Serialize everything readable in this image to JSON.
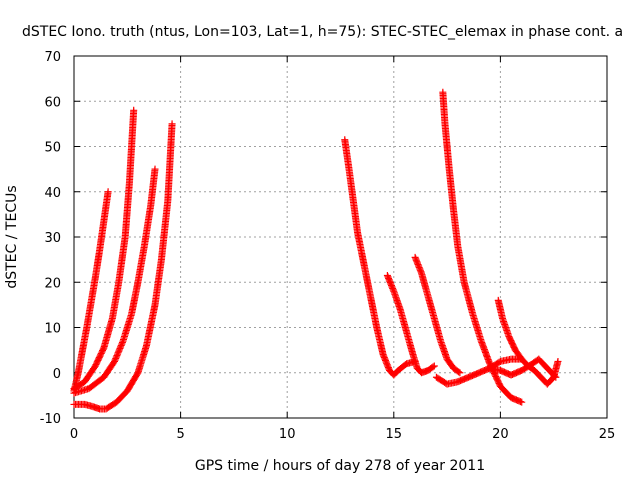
{
  "chart_data": {
    "type": "scatter",
    "title": "dSTEC Iono. truth (ntus, Lon=103, Lat=1, h=75): STEC-STEC_elemax in phase cont. a",
    "xlabel": "GPS time / hours of day 278 of year 2011",
    "ylabel": "dSTEC  / TECUs",
    "xlim": [
      0,
      25
    ],
    "ylim": [
      -10,
      70
    ],
    "xticks": [
      0,
      5,
      10,
      15,
      20,
      25
    ],
    "yticks": [
      -10,
      0,
      10,
      20,
      30,
      40,
      50,
      60,
      70
    ],
    "grid": true,
    "marker": "+",
    "color": "#ff0000",
    "series": [
      {
        "x": [
          0.0,
          0.2,
          0.4,
          0.6,
          0.8,
          1.0,
          1.2,
          1.4,
          1.6
        ],
        "y": [
          -4.0,
          0.0,
          5.0,
          10.0,
          15.5,
          21.0,
          27.0,
          33.5,
          40.0
        ]
      },
      {
        "x": [
          0.0,
          0.5,
          1.0,
          1.4,
          1.8,
          2.1,
          2.4,
          2.6,
          2.8
        ],
        "y": [
          -3.5,
          -2.0,
          1.5,
          5.5,
          12.0,
          20.0,
          30.0,
          42.0,
          58.0
        ]
      },
      {
        "x": [
          0.0,
          0.7,
          1.4,
          1.9,
          2.3,
          2.7,
          3.0,
          3.3,
          3.6,
          3.8
        ],
        "y": [
          -4.5,
          -3.5,
          -1.0,
          2.5,
          7.0,
          13.0,
          20.0,
          28.0,
          37.0,
          45.0
        ]
      },
      {
        "x": [
          0.0,
          0.5,
          0.9,
          1.2,
          1.5,
          2.0,
          2.5,
          3.0,
          3.4,
          3.8,
          4.1,
          4.4,
          4.6
        ],
        "y": [
          -7.0,
          -7.0,
          -7.5,
          -8.0,
          -8.0,
          -6.5,
          -4.0,
          0.0,
          6.0,
          15.0,
          25.0,
          38.0,
          55.0
        ]
      },
      {
        "x": [
          12.7,
          12.9,
          13.1,
          13.3,
          13.6,
          13.9,
          14.2,
          14.5,
          14.8,
          15.0,
          15.2,
          15.6,
          16.0
        ],
        "y": [
          51.5,
          45.0,
          38.0,
          31.0,
          24.0,
          17.0,
          10.0,
          4.0,
          0.5,
          -0.5,
          0.5,
          2.0,
          2.5
        ]
      },
      {
        "x": [
          14.7,
          15.0,
          15.3,
          15.6,
          15.9,
          16.1,
          16.3,
          16.6,
          16.9
        ],
        "y": [
          21.5,
          18.0,
          14.0,
          9.0,
          4.0,
          1.0,
          0.0,
          0.5,
          1.5
        ]
      },
      {
        "x": [
          16.0,
          16.3,
          16.6,
          16.9,
          17.2,
          17.5,
          17.8,
          18.1
        ],
        "y": [
          25.5,
          22.0,
          17.0,
          12.0,
          7.0,
          3.0,
          1.0,
          0.0
        ]
      },
      {
        "x": [
          17.3,
          17.4,
          17.6,
          17.8,
          18.0,
          18.3,
          18.7,
          19.1,
          19.5,
          20.0,
          20.5,
          21.0
        ],
        "y": [
          62.0,
          55.0,
          45.0,
          36.0,
          28.0,
          20.0,
          13.0,
          7.0,
          2.0,
          -3.0,
          -5.5,
          -6.5
        ]
      },
      {
        "x": [
          17.0,
          17.5,
          18.0,
          18.5,
          19.0,
          19.5,
          20.0,
          20.5,
          21.0
        ],
        "y": [
          -1.0,
          -2.5,
          -2.0,
          -1.0,
          0.0,
          1.0,
          2.5,
          3.0,
          3.0
        ]
      },
      {
        "x": [
          19.9,
          20.1,
          20.4,
          20.7,
          21.0,
          21.3,
          21.6,
          21.9,
          22.2,
          22.5,
          22.7
        ],
        "y": [
          16.0,
          12.0,
          8.0,
          5.0,
          3.0,
          1.5,
          0.5,
          -1.0,
          -2.5,
          -1.0,
          2.5
        ]
      },
      {
        "x": [
          19.5,
          20.0,
          20.5,
          21.0,
          21.5,
          21.8,
          22.0,
          22.3,
          22.6
        ],
        "y": [
          1.0,
          0.5,
          -0.5,
          0.5,
          2.0,
          3.0,
          2.0,
          0.5,
          -1.0
        ]
      }
    ]
  }
}
